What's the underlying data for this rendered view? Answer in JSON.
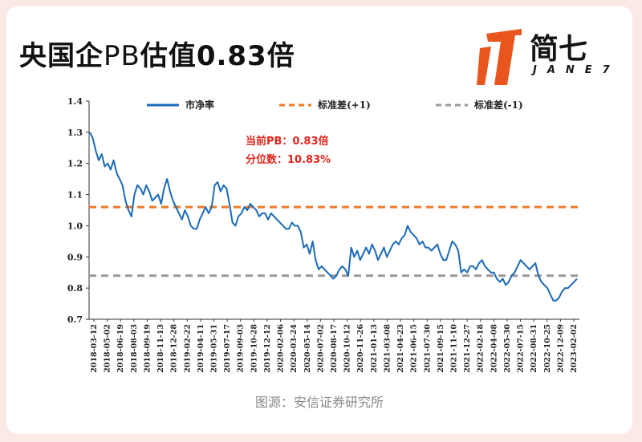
{
  "header": {
    "title_prefix": "央国企",
    "title_pb": "PB",
    "title_suffix": "估值0.83倍"
  },
  "logo": {
    "cn": "简七",
    "en": "JANE7"
  },
  "source": "图源：安信证券研究所",
  "colors": {
    "line": "#1a6bb8",
    "plus_sd": "#ee7a2a",
    "minus_sd": "#9a9a9a",
    "annotation": "#e0261c",
    "background": "#fbe9e6"
  },
  "chart_data": {
    "type": "line",
    "ylim": [
      0.7,
      1.4
    ],
    "yticks": [
      "0.7",
      "0.8",
      "0.9",
      "1.0",
      "1.1",
      "1.2",
      "1.3",
      "1.4"
    ],
    "x_ticks": [
      "2018-03-12",
      "2018-05-02",
      "2018-06-19",
      "2018-08-03",
      "2018-09-19",
      "2018-11-13",
      "2018-12-28",
      "2019-02-22",
      "2019-04-11",
      "2019-05-31",
      "2019-07-17",
      "2019-09-03",
      "2019-10-28",
      "2019-12-12",
      "2020-02-06",
      "2020-03-24",
      "2020-05-14",
      "2020-07-02",
      "2020-08-17",
      "2020-10-12",
      "2020-11-26",
      "2021-01-13",
      "2021-03-08",
      "2021-04-23",
      "2021-06-15",
      "2021-07-30",
      "2021-09-15",
      "2021-11-10",
      "2021-12-27",
      "2022-02-18",
      "2022-04-08",
      "2022-05-30",
      "2022-07-15",
      "2022-08-31",
      "2022-10-25",
      "2022-12-09",
      "2023-02-02"
    ],
    "legend": [
      "市净率",
      "标准差(+1)",
      "标准差(-1)"
    ],
    "annotations": [
      "当前PB：0.83倍",
      "分位数：10.83%"
    ],
    "plus_sd_value": 1.06,
    "minus_sd_value": 0.84,
    "series": [
      {
        "name": "市净率",
        "x_start": "2018-03-12",
        "x_end": "2023-02-02",
        "values": [
          1.3,
          1.28,
          1.24,
          1.21,
          1.23,
          1.19,
          1.2,
          1.18,
          1.21,
          1.17,
          1.15,
          1.13,
          1.08,
          1.05,
          1.03,
          1.1,
          1.13,
          1.12,
          1.1,
          1.13,
          1.11,
          1.08,
          1.09,
          1.1,
          1.07,
          1.12,
          1.15,
          1.11,
          1.08,
          1.06,
          1.04,
          1.02,
          1.05,
          1.03,
          1.0,
          0.99,
          0.99,
          1.02,
          1.04,
          1.06,
          1.04,
          1.06,
          1.13,
          1.14,
          1.11,
          1.13,
          1.12,
          1.07,
          1.01,
          1.0,
          1.03,
          1.04,
          1.06,
          1.05,
          1.07,
          1.06,
          1.05,
          1.03,
          1.04,
          1.04,
          1.02,
          1.04,
          1.03,
          1.02,
          1.01,
          1.0,
          0.99,
          0.99,
          1.01,
          1.0,
          1.0,
          0.98,
          0.93,
          0.94,
          0.91,
          0.95,
          0.89,
          0.86,
          0.87,
          0.86,
          0.85,
          0.84,
          0.83,
          0.84,
          0.86,
          0.87,
          0.86,
          0.84,
          0.93,
          0.9,
          0.92,
          0.89,
          0.91,
          0.93,
          0.91,
          0.94,
          0.92,
          0.89,
          0.91,
          0.93,
          0.9,
          0.92,
          0.94,
          0.95,
          0.94,
          0.96,
          0.97,
          1.0,
          0.98,
          0.97,
          0.96,
          0.94,
          0.95,
          0.93,
          0.93,
          0.92,
          0.93,
          0.94,
          0.91,
          0.89,
          0.89,
          0.92,
          0.95,
          0.94,
          0.92,
          0.85,
          0.86,
          0.85,
          0.87,
          0.87,
          0.86,
          0.88,
          0.89,
          0.87,
          0.86,
          0.85,
          0.85,
          0.83,
          0.82,
          0.83,
          0.81,
          0.82,
          0.84,
          0.85,
          0.87,
          0.89,
          0.88,
          0.87,
          0.86,
          0.87,
          0.88,
          0.84,
          0.82,
          0.81,
          0.8,
          0.78,
          0.76,
          0.76,
          0.77,
          0.79,
          0.8,
          0.8,
          0.81,
          0.82,
          0.83
        ]
      },
      {
        "name": "标准差(+1)",
        "values": [
          1.06,
          1.06
        ]
      },
      {
        "name": "标准差(-1)",
        "values": [
          0.84,
          0.84
        ]
      }
    ]
  }
}
